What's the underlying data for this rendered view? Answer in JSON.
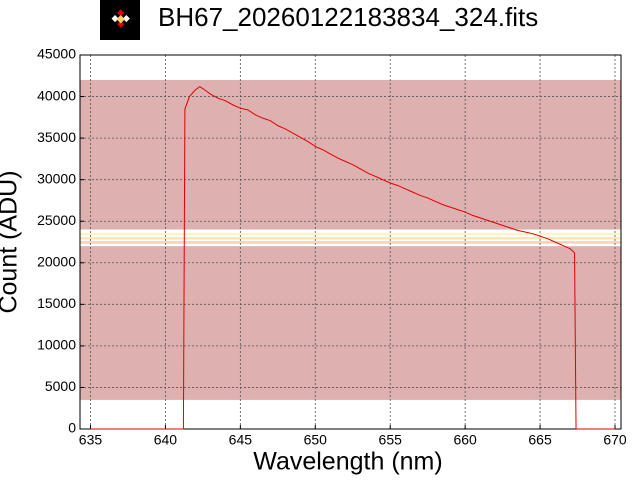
{
  "chart_data": {
    "type": "line",
    "title": "BH67_20260122183834_324.fits",
    "x_label": "Wavelength (nm)",
    "y_label": "Count (ADU)",
    "xlim": [
      634.3,
      670.4
    ],
    "ylim": [
      0,
      45000
    ],
    "xticks": [
      635,
      640,
      645,
      650,
      655,
      660,
      665,
      670
    ],
    "yticks": [
      0,
      5000,
      10000,
      15000,
      20000,
      25000,
      30000,
      35000,
      40000,
      45000
    ],
    "grid": true,
    "bands": [
      {
        "from": 3500,
        "to": 22000,
        "color": "#dfb0b0"
      },
      {
        "from": 22300,
        "to": 22600,
        "color": "#f5d0b8"
      },
      {
        "from": 22800,
        "to": 23100,
        "color": "#fbe6b8"
      },
      {
        "from": 23300,
        "to": 23600,
        "color": "#fdf3c8"
      },
      {
        "from": 24000,
        "to": 42000,
        "color": "#dfb0b0"
      }
    ],
    "series": [
      {
        "color": "#e00000",
        "x": [
          635,
          641.2,
          641.3,
          641.6,
          642.0,
          642.3,
          642.7,
          643,
          643.5,
          644,
          644.5,
          645,
          645.5,
          646,
          646.5,
          647,
          647.5,
          648,
          648.5,
          649,
          649.5,
          650,
          650.5,
          651,
          651.5,
          652,
          652.5,
          653,
          653.5,
          654,
          654.5,
          655,
          655.5,
          656,
          656.5,
          657,
          657.5,
          658,
          658.5,
          659,
          659.5,
          660,
          660.5,
          661,
          661.5,
          662,
          662.5,
          663,
          663.5,
          664,
          664.5,
          665,
          665.5,
          666,
          666.5,
          667,
          667.3,
          667.4,
          670
        ],
        "values": [
          0,
          0,
          38500,
          40000,
          40800,
          41200,
          40700,
          40300,
          39800,
          39500,
          39000,
          38600,
          38400,
          37800,
          37400,
          37100,
          36500,
          36100,
          35600,
          35100,
          34600,
          34000,
          33600,
          33100,
          32600,
          32200,
          31800,
          31300,
          30800,
          30400,
          30000,
          29600,
          29300,
          28900,
          28500,
          28100,
          27800,
          27400,
          27000,
          26700,
          26400,
          26100,
          25700,
          25400,
          25100,
          24800,
          24500,
          24200,
          23900,
          23700,
          23500,
          23200,
          22900,
          22500,
          22100,
          21700,
          21200,
          0,
          0
        ]
      }
    ]
  }
}
